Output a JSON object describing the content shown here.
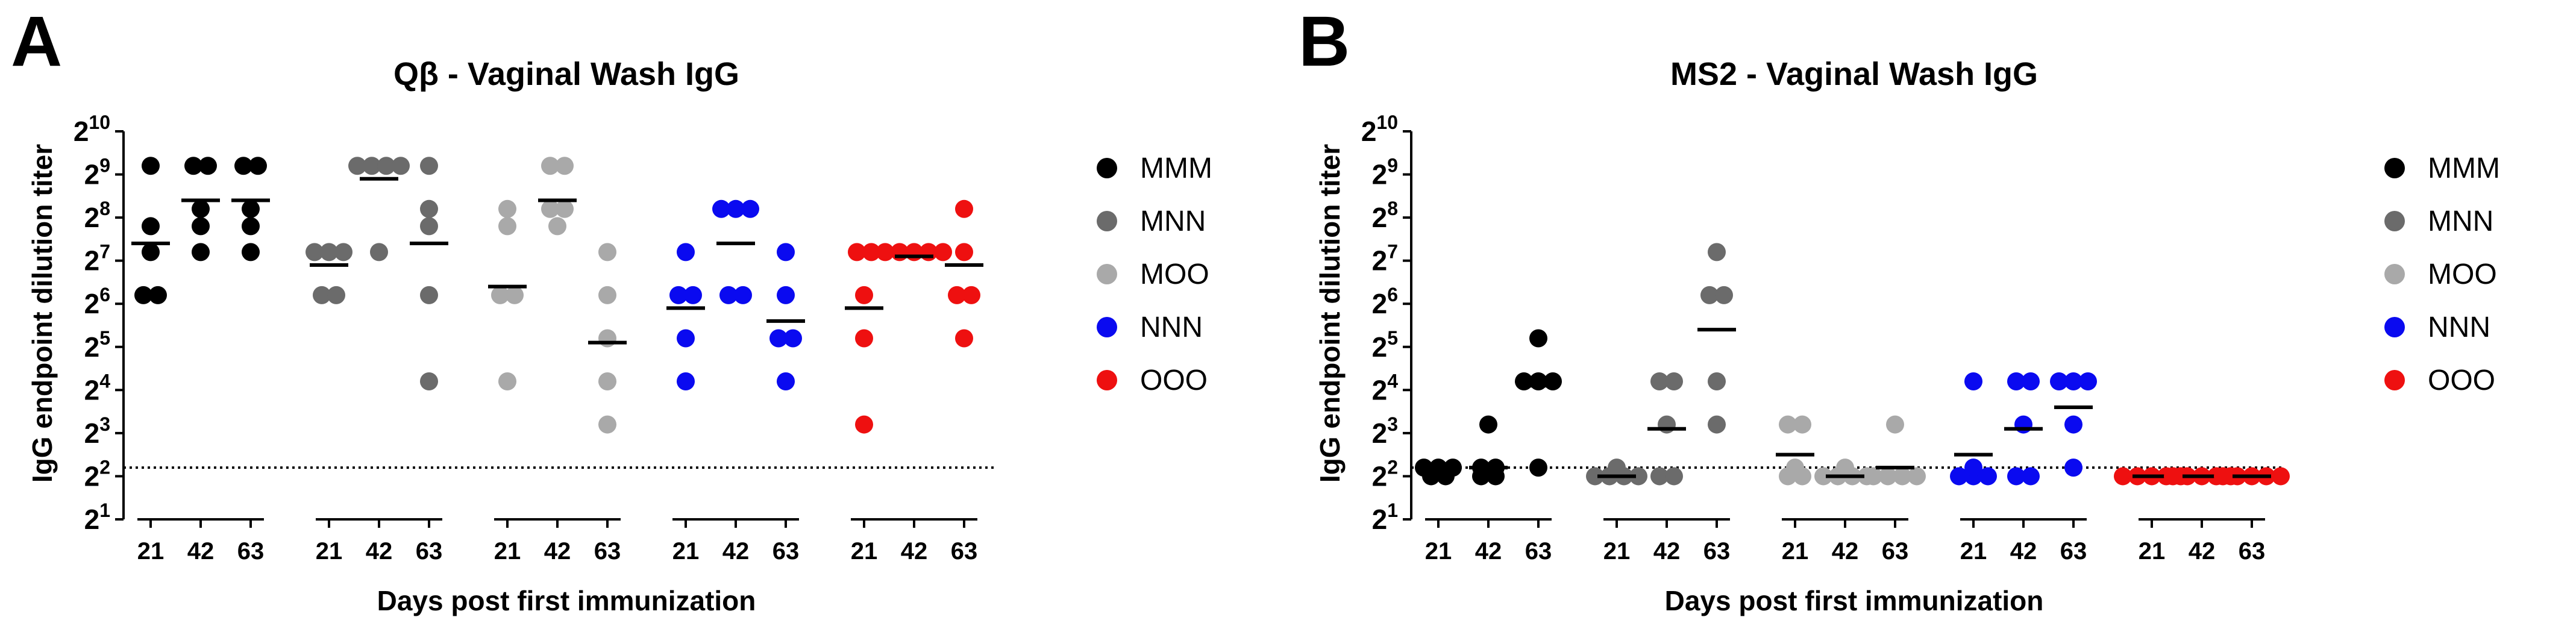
{
  "figure": {
    "panels": [
      {
        "letter": "A",
        "title": "Qβ - Vaginal Wash IgG"
      },
      {
        "letter": "B",
        "title": "MS2 - Vaginal Wash IgG"
      }
    ],
    "ylabel": "IgG endpoint dilution titer",
    "xlabel": "Days post first immunization",
    "groups": [
      "MMM",
      "MNN",
      "MOO",
      "NNN",
      "OOO"
    ],
    "group_colors": {
      "MMM": "#000000",
      "MNN": "#6b6b6b",
      "MOO": "#a9a9a9",
      "NNN": "#0a0af0",
      "OOO": "#ee1010"
    },
    "days": [
      "21",
      "42",
      "63"
    ],
    "y_ticks": [
      {
        "base": "2",
        "exp": "1"
      },
      {
        "base": "2",
        "exp": "2"
      },
      {
        "base": "2",
        "exp": "3"
      },
      {
        "base": "2",
        "exp": "4"
      },
      {
        "base": "2",
        "exp": "5"
      },
      {
        "base": "2",
        "exp": "6"
      },
      {
        "base": "2",
        "exp": "7"
      },
      {
        "base": "2",
        "exp": "8"
      },
      {
        "base": "2",
        "exp": "9"
      },
      {
        "base": "2",
        "exp": "10"
      }
    ]
  },
  "chart_data": [
    {
      "type": "scatter",
      "title": "Qβ - Vaginal Wash IgG",
      "xlabel": "Days post first immunization",
      "ylabel": "IgG endpoint dilution titer",
      "yscale": "log2",
      "ylim_log2": [
        1,
        10
      ],
      "detection_limit_log2": 2.2,
      "categories": [
        "21",
        "42",
        "63"
      ],
      "series": [
        {
          "name": "MMM",
          "points": [
            [
              6.2,
              6.2,
              7.2,
              7.8,
              9.2
            ],
            [
              7.2,
              7.8,
              8.2,
              9.2,
              9.2
            ],
            [
              7.2,
              7.8,
              8.2,
              9.2,
              9.2
            ]
          ],
          "medians": [
            7.4,
            8.4,
            8.4
          ]
        },
        {
          "name": "MNN",
          "points": [
            [
              6.2,
              6.2,
              7.2,
              7.2,
              7.2
            ],
            [
              7.2,
              9.2,
              9.2,
              9.2,
              9.2
            ],
            [
              4.2,
              6.2,
              7.8,
              8.2,
              9.2
            ]
          ],
          "medians": [
            6.9,
            8.9,
            7.4
          ]
        },
        {
          "name": "MOO",
          "points": [
            [
              4.2,
              6.2,
              6.2,
              7.8,
              8.2
            ],
            [
              7.8,
              8.2,
              8.2,
              9.2,
              9.2
            ],
            [
              3.2,
              4.2,
              5.2,
              6.2,
              7.2
            ]
          ],
          "medians": [
            6.4,
            8.4,
            5.1
          ]
        },
        {
          "name": "NNN",
          "points": [
            [
              4.2,
              5.2,
              6.2,
              6.2,
              7.2
            ],
            [
              6.2,
              6.2,
              8.2,
              8.2,
              8.2
            ],
            [
              4.2,
              5.2,
              5.2,
              6.2,
              7.2
            ]
          ],
          "medians": [
            5.9,
            7.4,
            5.6
          ]
        },
        {
          "name": "OOO",
          "points": [
            [
              3.2,
              5.2,
              6.2,
              7.2,
              7.2
            ],
            [
              7.2,
              7.2,
              7.2,
              7.2,
              7.2
            ],
            [
              5.2,
              6.2,
              6.2,
              7.2,
              8.2
            ]
          ],
          "medians": [
            5.9,
            7.1,
            6.9
          ]
        }
      ]
    },
    {
      "type": "scatter",
      "title": "MS2 - Vaginal Wash IgG",
      "xlabel": "Days post first immunization",
      "ylabel": "IgG endpoint dilution titer",
      "yscale": "log2",
      "ylim_log2": [
        1,
        10
      ],
      "detection_limit_log2": 2.2,
      "categories": [
        "21",
        "42",
        "63"
      ],
      "series": [
        {
          "name": "MMM",
          "points": [
            [
              2.0,
              2.0,
              2.2,
              2.2,
              2.2
            ],
            [
              2.0,
              2.0,
              2.2,
              2.2,
              3.2
            ],
            [
              2.2,
              4.2,
              4.2,
              4.2,
              5.2
            ]
          ],
          "medians": [
            2.1,
            2.2,
            4.1
          ]
        },
        {
          "name": "MNN",
          "points": [
            [
              2.0,
              2.0,
              2.0,
              2.0,
              2.2
            ],
            [
              2.0,
              2.0,
              3.2,
              4.2,
              4.2
            ],
            [
              3.2,
              4.2,
              6.2,
              6.2,
              7.2
            ]
          ],
          "medians": [
            2.0,
            3.1,
            5.4
          ]
        },
        {
          "name": "MOO",
          "points": [
            [
              2.0,
              2.0,
              2.2,
              3.2,
              3.2
            ],
            [
              2.0,
              2.0,
              2.0,
              2.0,
              2.2
            ],
            [
              2.0,
              2.0,
              2.0,
              2.0,
              3.2
            ]
          ],
          "medians": [
            2.5,
            2.0,
            2.2
          ]
        },
        {
          "name": "NNN",
          "points": [
            [
              2.0,
              2.0,
              2.0,
              2.2,
              4.2
            ],
            [
              2.0,
              2.0,
              3.2,
              4.2,
              4.2
            ],
            [
              2.2,
              3.2,
              4.2,
              4.2,
              4.2
            ]
          ],
          "medians": [
            2.5,
            3.1,
            3.6
          ]
        },
        {
          "name": "OOO",
          "points": [
            [
              2.0,
              2.0,
              2.0,
              2.0,
              2.0
            ],
            [
              2.0,
              2.0,
              2.0,
              2.0,
              2.0
            ],
            [
              2.0,
              2.0,
              2.0,
              2.0,
              2.0
            ]
          ],
          "medians": [
            2.0,
            2.0,
            2.0
          ]
        }
      ]
    }
  ]
}
